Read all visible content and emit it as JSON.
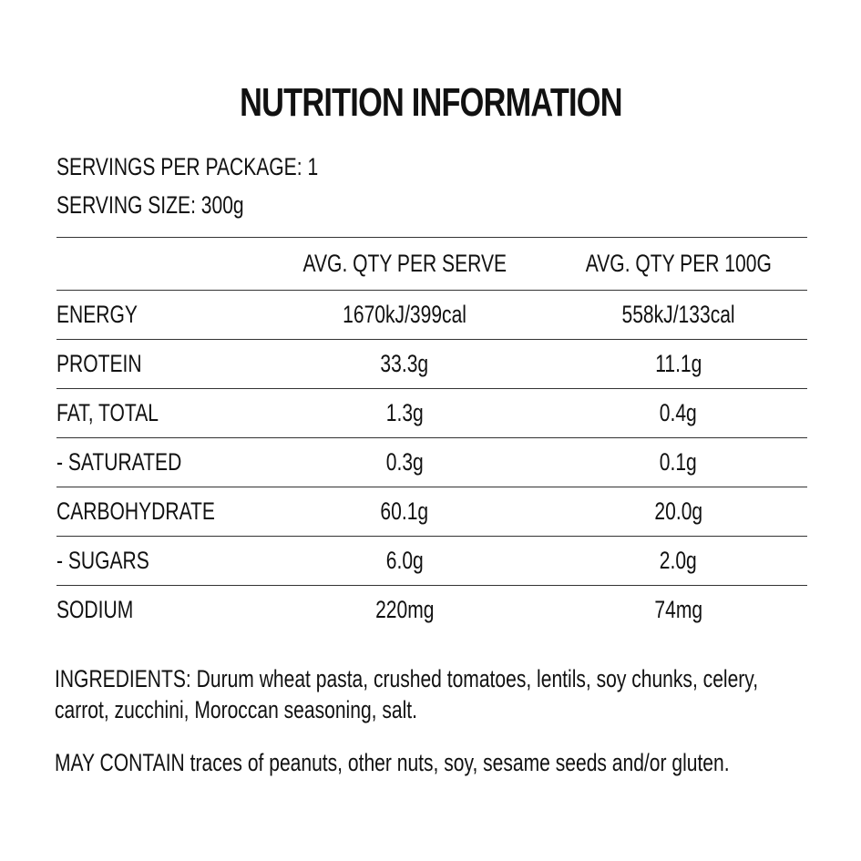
{
  "title": "NUTRITION INFORMATION",
  "servings": {
    "per_package_label": "SERVINGS PER PACKAGE:",
    "per_package_value": "1",
    "size_label": "SERVING SIZE:",
    "size_value": "300g"
  },
  "table": {
    "headers": {
      "name": "",
      "per_serve": "AVG. QTY PER SERVE",
      "per_100g": "AVG. QTY PER 100G"
    },
    "rows": [
      {
        "name": "ENERGY",
        "per_serve": "1670kJ/399cal",
        "per_100g": "558kJ/133cal"
      },
      {
        "name": "PROTEIN",
        "per_serve": "33.3g",
        "per_100g": "11.1g"
      },
      {
        "name": "FAT, TOTAL",
        "per_serve": "1.3g",
        "per_100g": "0.4g"
      },
      {
        "name": "- SATURATED",
        "per_serve": "0.3g",
        "per_100g": "0.1g"
      },
      {
        "name": "CARBOHYDRATE",
        "per_serve": "60.1g",
        "per_100g": "20.0g"
      },
      {
        "name": "- SUGARS",
        "per_serve": "6.0g",
        "per_100g": "2.0g"
      },
      {
        "name": "SODIUM",
        "per_serve": "220mg",
        "per_100g": "74mg"
      }
    ]
  },
  "ingredients": {
    "label": "INGREDIENTS:",
    "text": "Durum wheat pasta, crushed tomatoes, lentils, soy chunks, celery, carrot, zucchini, Moroccan seasoning, salt."
  },
  "may_contain": {
    "label": "MAY CONTAIN",
    "text": "traces of peanuts, other nuts, soy, sesame seeds and/or gluten."
  }
}
